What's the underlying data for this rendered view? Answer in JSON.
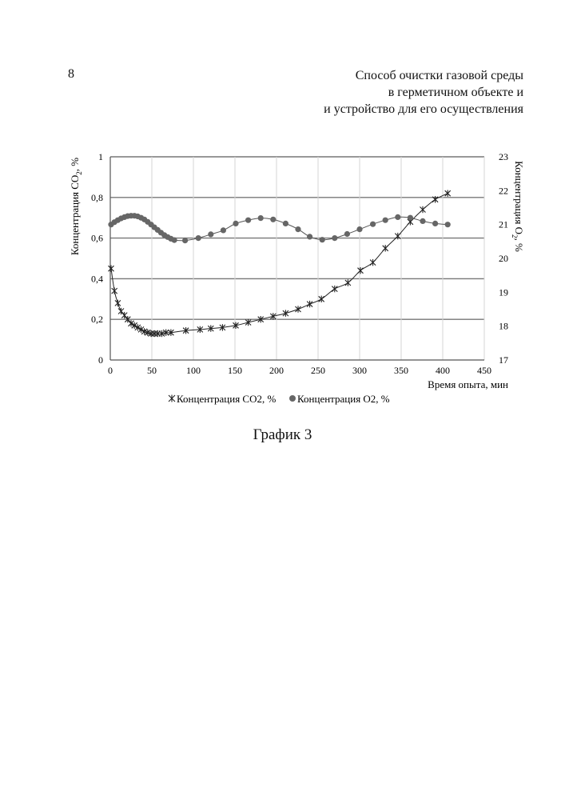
{
  "page": {
    "number": "8",
    "title_lines": [
      "Способ очистки газовой среды",
      "в герметичном объекте и",
      "и устройство для его осуществления"
    ],
    "caption": "График 3"
  },
  "chart_data": {
    "type": "scatter",
    "xlabel": "Время опыта, мин",
    "ylabel_left_main": "Концентрация CO",
    "ylabel_left_sub": "2",
    "ylabel_left_tail": ", %",
    "ylabel_right_main": "Концентрация O",
    "ylabel_right_sub": "2",
    "ylabel_right_tail": ", %",
    "xlim": [
      0,
      450
    ],
    "xticks": [
      "0",
      "50",
      "100",
      "150",
      "200",
      "250",
      "300",
      "350",
      "400",
      "450"
    ],
    "ylim_left": [
      0,
      1
    ],
    "yticks_left": [
      "0",
      "0,2",
      "0,4",
      "0,6",
      "0,8",
      "1"
    ],
    "ylim_right": [
      17,
      23
    ],
    "yticks_right": [
      "17",
      "18",
      "19",
      "20",
      "21",
      "22",
      "23"
    ],
    "grid": "horizontal",
    "legend_position": "bottom",
    "series": [
      {
        "name": "Концентрация CO2, %",
        "axis": "left",
        "marker": "asterisk",
        "color": "#222222",
        "trendline": true,
        "points": [
          [
            1,
            0.45
          ],
          [
            5,
            0.34
          ],
          [
            9,
            0.28
          ],
          [
            13,
            0.24
          ],
          [
            17,
            0.22
          ],
          [
            21,
            0.2
          ],
          [
            25,
            0.18
          ],
          [
            29,
            0.17
          ],
          [
            33,
            0.16
          ],
          [
            37,
            0.15
          ],
          [
            41,
            0.14
          ],
          [
            45,
            0.135
          ],
          [
            49,
            0.13
          ],
          [
            53,
            0.13
          ],
          [
            57,
            0.13
          ],
          [
            62,
            0.13
          ],
          [
            67,
            0.135
          ],
          [
            73,
            0.135
          ],
          [
            91,
            0.145
          ],
          [
            108,
            0.15
          ],
          [
            121,
            0.155
          ],
          [
            135,
            0.16
          ],
          [
            151,
            0.17
          ],
          [
            166,
            0.185
          ],
          [
            181,
            0.2
          ],
          [
            196,
            0.215
          ],
          [
            211,
            0.23
          ],
          [
            226,
            0.25
          ],
          [
            240,
            0.275
          ],
          [
            254,
            0.3
          ],
          [
            270,
            0.35
          ],
          [
            286,
            0.38
          ],
          [
            301,
            0.44
          ],
          [
            316,
            0.48
          ],
          [
            331,
            0.55
          ],
          [
            346,
            0.61
          ],
          [
            361,
            0.68
          ],
          [
            376,
            0.74
          ],
          [
            391,
            0.79
          ],
          [
            406,
            0.82
          ]
        ]
      },
      {
        "name": "Концентрация O2, %",
        "axis": "right",
        "marker": "circle",
        "color": "#666666",
        "trendline": true,
        "points": [
          [
            1,
            21.0
          ],
          [
            5,
            21.07
          ],
          [
            9,
            21.13
          ],
          [
            13,
            21.18
          ],
          [
            17,
            21.22
          ],
          [
            21,
            21.25
          ],
          [
            25,
            21.26
          ],
          [
            29,
            21.26
          ],
          [
            33,
            21.24
          ],
          [
            37,
            21.2
          ],
          [
            41,
            21.15
          ],
          [
            45,
            21.08
          ],
          [
            49,
            21.0
          ],
          [
            53,
            20.92
          ],
          [
            57,
            20.84
          ],
          [
            61,
            20.76
          ],
          [
            65,
            20.69
          ],
          [
            69,
            20.63
          ],
          [
            73,
            20.58
          ],
          [
            77,
            20.54
          ],
          [
            90,
            20.53
          ],
          [
            106,
            20.6
          ],
          [
            121,
            20.71
          ],
          [
            136,
            20.83
          ],
          [
            151,
            21.03
          ],
          [
            166,
            21.13
          ],
          [
            181,
            21.19
          ],
          [
            196,
            21.15
          ],
          [
            211,
            21.03
          ],
          [
            226,
            20.86
          ],
          [
            240,
            20.64
          ],
          [
            255,
            20.55
          ],
          [
            270,
            20.6
          ],
          [
            285,
            20.72
          ],
          [
            300,
            20.86
          ],
          [
            316,
            21.01
          ],
          [
            331,
            21.13
          ],
          [
            346,
            21.22
          ],
          [
            361,
            21.2
          ],
          [
            376,
            21.1
          ],
          [
            391,
            21.03
          ],
          [
            406,
            21.0
          ]
        ]
      }
    ]
  }
}
